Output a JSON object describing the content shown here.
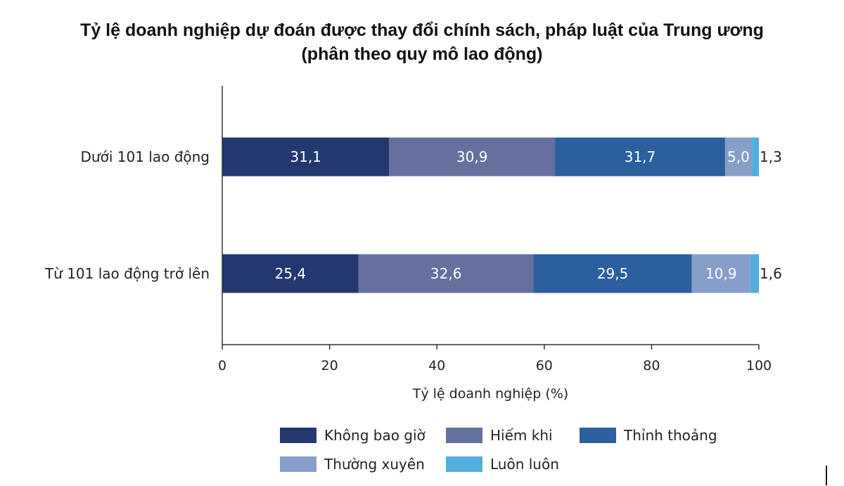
{
  "chart_data": {
    "type": "bar",
    "orientation": "horizontal",
    "stacked": true,
    "title": "Tỷ lệ doanh nghiệp dự đoán được thay đổi chính sách, pháp luật của Trung ương",
    "subtitle": "(phân theo quy mô lao động)",
    "xlabel": "Tỷ lệ doanh nghiệp (%)",
    "ylabel": "",
    "xlim": [
      0,
      100
    ],
    "xticks": [
      0,
      20,
      40,
      60,
      80,
      100
    ],
    "grid": false,
    "legend_position": "bottom",
    "categories": [
      "Dưới 101 lao động",
      "Từ 101 lao động trở lên"
    ],
    "series": [
      {
        "name": "Không bao giờ",
        "color": "#22386e",
        "values": [
          31.1,
          25.4
        ],
        "labels": [
          "31,1",
          "25,4"
        ]
      },
      {
        "name": "Hiếm khi",
        "color": "#65709f",
        "values": [
          30.9,
          32.6
        ],
        "labels": [
          "30,9",
          "32,6"
        ]
      },
      {
        "name": "Thỉnh thoảng",
        "color": "#2b5f9d",
        "values": [
          31.7,
          29.5
        ],
        "labels": [
          "31,7",
          "29,5"
        ]
      },
      {
        "name": "Thường xuyên",
        "color": "#869fc9",
        "values": [
          5.0,
          10.9
        ],
        "labels": [
          "5,0",
          "10,9"
        ]
      },
      {
        "name": "Luôn luôn",
        "color": "#53aede",
        "values": [
          1.3,
          1.6
        ],
        "labels": [
          "1,3",
          "1,6"
        ]
      }
    ]
  }
}
